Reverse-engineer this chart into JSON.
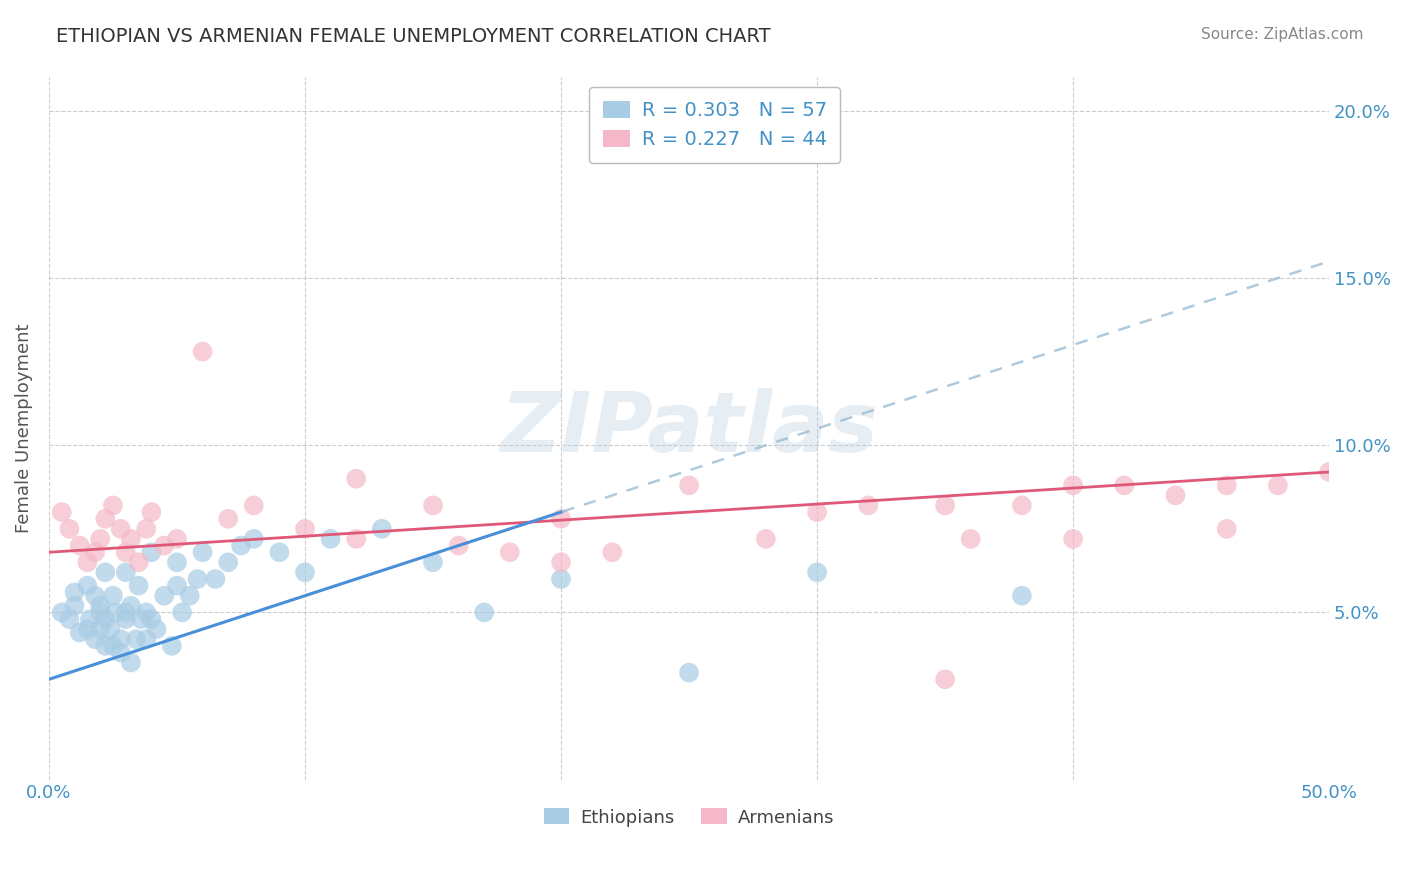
{
  "title": "ETHIOPIAN VS ARMENIAN FEMALE UNEMPLOYMENT CORRELATION CHART",
  "source": "Source: ZipAtlas.com",
  "ylabel": "Female Unemployment",
  "xlim": [
    0.0,
    0.5
  ],
  "ylim": [
    0.0,
    0.21
  ],
  "yticks": [
    0.05,
    0.1,
    0.15,
    0.2
  ],
  "ytick_labels": [
    "5.0%",
    "10.0%",
    "15.0%",
    "20.0%"
  ],
  "xticks": [
    0.0,
    0.1,
    0.2,
    0.3,
    0.4,
    0.5
  ],
  "xtick_labels": [
    "0.0%",
    "",
    "",
    "",
    "",
    "50.0%"
  ],
  "blue_color": "#a8cce4",
  "pink_color": "#f4b8c8",
  "blue_line_color": "#4a90d9",
  "pink_line_color": "#e05878",
  "blue_dash_color": "#9bbdd4",
  "legend_blue_R": "0.303",
  "legend_blue_N": "57",
  "legend_pink_R": "0.227",
  "legend_pink_N": "44",
  "watermark": "ZIPatlas",
  "ethiopian_x": [
    0.005,
    0.008,
    0.01,
    0.01,
    0.012,
    0.015,
    0.015,
    0.016,
    0.018,
    0.018,
    0.02,
    0.02,
    0.02,
    0.022,
    0.022,
    0.022,
    0.024,
    0.025,
    0.025,
    0.026,
    0.028,
    0.028,
    0.03,
    0.03,
    0.03,
    0.032,
    0.032,
    0.034,
    0.035,
    0.036,
    0.038,
    0.038,
    0.04,
    0.04,
    0.042,
    0.045,
    0.048,
    0.05,
    0.05,
    0.052,
    0.055,
    0.058,
    0.06,
    0.065,
    0.07,
    0.075,
    0.08,
    0.09,
    0.1,
    0.11,
    0.13,
    0.15,
    0.17,
    0.2,
    0.25,
    0.3,
    0.38
  ],
  "ethiopian_y": [
    0.05,
    0.048,
    0.052,
    0.056,
    0.044,
    0.045,
    0.058,
    0.048,
    0.042,
    0.055,
    0.045,
    0.05,
    0.052,
    0.04,
    0.048,
    0.062,
    0.045,
    0.04,
    0.055,
    0.05,
    0.038,
    0.042,
    0.048,
    0.05,
    0.062,
    0.035,
    0.052,
    0.042,
    0.058,
    0.048,
    0.05,
    0.042,
    0.048,
    0.068,
    0.045,
    0.055,
    0.04,
    0.058,
    0.065,
    0.05,
    0.055,
    0.06,
    0.068,
    0.06,
    0.065,
    0.07,
    0.072,
    0.068,
    0.062,
    0.072,
    0.075,
    0.065,
    0.05,
    0.06,
    0.032,
    0.062,
    0.055
  ],
  "armenian_x": [
    0.005,
    0.008,
    0.012,
    0.015,
    0.018,
    0.02,
    0.022,
    0.025,
    0.028,
    0.03,
    0.032,
    0.035,
    0.038,
    0.04,
    0.045,
    0.05,
    0.06,
    0.07,
    0.08,
    0.1,
    0.12,
    0.15,
    0.18,
    0.2,
    0.22,
    0.25,
    0.28,
    0.3,
    0.32,
    0.35,
    0.36,
    0.38,
    0.4,
    0.42,
    0.44,
    0.46,
    0.48,
    0.5,
    0.12,
    0.16,
    0.2,
    0.35,
    0.4,
    0.46
  ],
  "armenian_y": [
    0.08,
    0.075,
    0.07,
    0.065,
    0.068,
    0.072,
    0.078,
    0.082,
    0.075,
    0.068,
    0.072,
    0.065,
    0.075,
    0.08,
    0.07,
    0.072,
    0.128,
    0.078,
    0.082,
    0.075,
    0.072,
    0.082,
    0.068,
    0.078,
    0.068,
    0.088,
    0.072,
    0.08,
    0.082,
    0.082,
    0.072,
    0.082,
    0.072,
    0.088,
    0.085,
    0.075,
    0.088,
    0.092,
    0.09,
    0.07,
    0.065,
    0.03,
    0.088,
    0.088
  ],
  "blue_line_x0": 0.0,
  "blue_line_y0": 0.03,
  "blue_line_x1": 0.5,
  "blue_line_y1": 0.155,
  "pink_line_x0": 0.0,
  "pink_line_y0": 0.068,
  "pink_line_x1": 0.5,
  "pink_line_y1": 0.092,
  "grid_color": "#cccccc",
  "tick_label_color": "#4292c6",
  "background_color": "#ffffff",
  "title_color": "#333333",
  "source_color": "#888888",
  "ylabel_color": "#555555"
}
